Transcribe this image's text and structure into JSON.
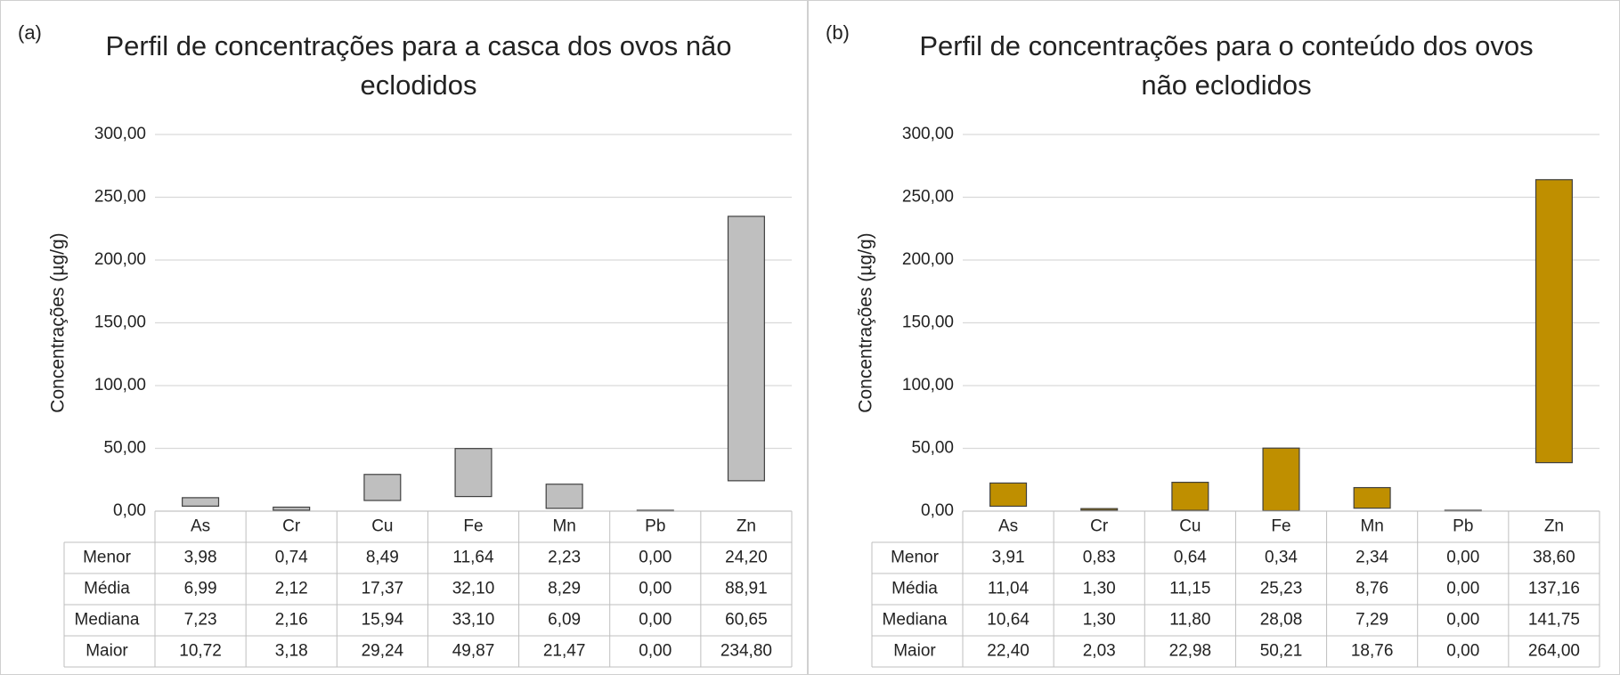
{
  "chart_data": [
    {
      "type": "floating_bar",
      "panel_label": "(a)",
      "title": "Perfil de concentrações para a casca dos ovos não eclodidos",
      "y_label": "Concentrações (µg/g)",
      "color": "#bfbfbf",
      "edge_color": "#404040",
      "categories": [
        "As",
        "Cr",
        "Cu",
        "Fe",
        "Mn",
        "Pb",
        "Zn"
      ],
      "ylim": [
        0,
        300
      ],
      "yticks": [
        {
          "value": 0,
          "label": "0,00"
        },
        {
          "value": 50,
          "label": "50,00"
        },
        {
          "value": 100,
          "label": "100,00"
        },
        {
          "value": 150,
          "label": "150,00"
        },
        {
          "value": 200,
          "label": "200,00"
        },
        {
          "value": 250,
          "label": "250,00"
        },
        {
          "value": 300,
          "label": "300,00"
        }
      ],
      "grid": true,
      "series": [
        {
          "name": "Menor",
          "values": [
            3.98,
            0.74,
            8.49,
            11.64,
            2.23,
            0,
            24.2
          ],
          "value_labels": [
            "3,98",
            "0,74",
            "8,49",
            "11,64",
            "2,23",
            "0,00",
            "24,20"
          ]
        },
        {
          "name": "Média",
          "values": [
            6.99,
            2.12,
            17.37,
            32.1,
            8.29,
            0,
            88.91
          ],
          "value_labels": [
            "6,99",
            "2,12",
            "17,37",
            "32,10",
            "8,29",
            "0,00",
            "88,91"
          ]
        },
        {
          "name": "Mediana",
          "values": [
            7.23,
            2.16,
            15.94,
            33.1,
            6.09,
            0,
            60.65
          ],
          "value_labels": [
            "7,23",
            "2,16",
            "15,94",
            "33,10",
            "6,09",
            "0,00",
            "60,65"
          ]
        },
        {
          "name": "Maior",
          "values": [
            10.72,
            3.18,
            29.24,
            49.87,
            21.47,
            0,
            234.8
          ],
          "value_labels": [
            "10,72",
            "3,18",
            "29,24",
            "49,87",
            "21,47",
            "0,00",
            "234,80"
          ]
        }
      ]
    },
    {
      "type": "floating_bar",
      "panel_label": "(b)",
      "title": "Perfil de concentrações para o conteúdo dos ovos não eclodidos",
      "y_label": "Concentrações (µg/g)",
      "color": "#bf8f00",
      "edge_color": "#404040",
      "categories": [
        "As",
        "Cr",
        "Cu",
        "Fe",
        "Mn",
        "Pb",
        "Zn"
      ],
      "ylim": [
        0,
        300
      ],
      "yticks": [
        {
          "value": 0,
          "label": "0,00"
        },
        {
          "value": 50,
          "label": "50,00"
        },
        {
          "value": 100,
          "label": "100,00"
        },
        {
          "value": 150,
          "label": "150,00"
        },
        {
          "value": 200,
          "label": "200,00"
        },
        {
          "value": 250,
          "label": "250,00"
        },
        {
          "value": 300,
          "label": "300,00"
        }
      ],
      "grid": true,
      "series": [
        {
          "name": "Menor",
          "values": [
            3.91,
            0.83,
            0.64,
            0.34,
            2.34,
            0,
            38.6
          ],
          "value_labels": [
            "3,91",
            "0,83",
            "0,64",
            "0,34",
            "2,34",
            "0,00",
            "38,60"
          ]
        },
        {
          "name": "Média",
          "values": [
            11.04,
            1.3,
            11.15,
            25.23,
            8.76,
            0,
            137.16
          ],
          "value_labels": [
            "11,04",
            "1,30",
            "11,15",
            "25,23",
            "8,76",
            "0,00",
            "137,16"
          ]
        },
        {
          "name": "Mediana",
          "values": [
            10.64,
            1.3,
            11.8,
            28.08,
            7.29,
            0,
            141.75
          ],
          "value_labels": [
            "10,64",
            "1,30",
            "11,80",
            "28,08",
            "7,29",
            "0,00",
            "141,75"
          ]
        },
        {
          "name": "Maior",
          "values": [
            22.4,
            2.03,
            22.98,
            50.21,
            18.76,
            0,
            264
          ],
          "value_labels": [
            "22,40",
            "2,03",
            "22,98",
            "50,21",
            "18,76",
            "0,00",
            "264,00"
          ]
        }
      ]
    }
  ]
}
